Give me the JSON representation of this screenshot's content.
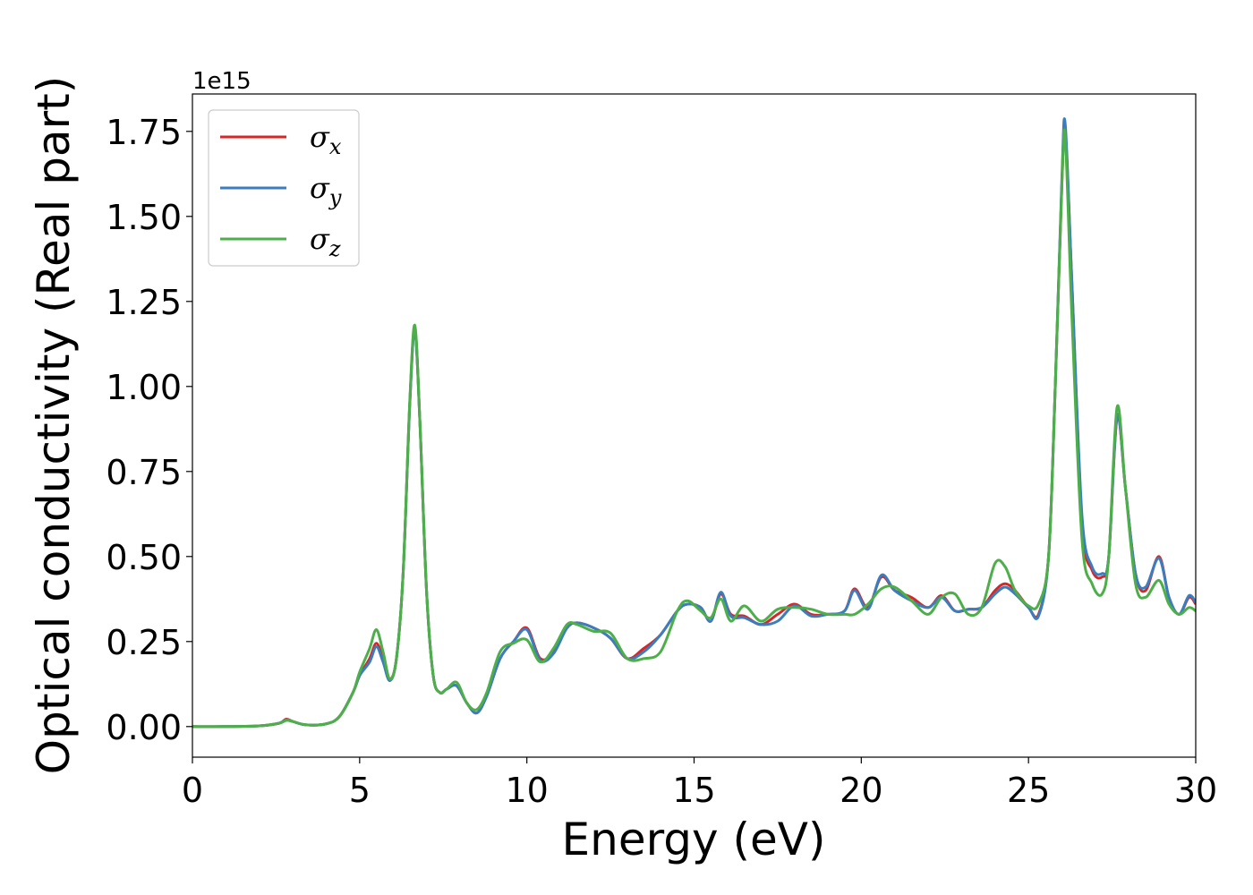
{
  "chart_data": {
    "type": "line",
    "title": "",
    "xlabel": "Energy (eV)",
    "ylabel": "Optical conductivity (Real part)",
    "y_offset_text": "1e15",
    "xlim": [
      0,
      30
    ],
    "ylim": [
      -0.09,
      1.86
    ],
    "xticks": [
      0,
      5,
      10,
      15,
      20,
      25,
      30
    ],
    "xtick_labels": [
      "0",
      "5",
      "10",
      "15",
      "20",
      "25",
      "30"
    ],
    "yticks": [
      0.0,
      0.25,
      0.5,
      0.75,
      1.0,
      1.25,
      1.5,
      1.75
    ],
    "ytick_labels": [
      "0.00",
      "0.25",
      "0.50",
      "0.75",
      "1.00",
      "1.25",
      "1.50",
      "1.75"
    ],
    "grid": false,
    "legend_position": "top-left",
    "series": [
      {
        "name": "σx",
        "legend_main": "σ",
        "legend_sub": "x",
        "color": "#d62728",
        "x": [
          0,
          1,
          2,
          2.6,
          2.8,
          3.0,
          3.4,
          4.0,
          4.4,
          4.8,
          5.0,
          5.3,
          5.5,
          5.7,
          5.9,
          6.1,
          6.3,
          6.5,
          6.65,
          6.8,
          7.0,
          7.2,
          7.4,
          7.6,
          7.9,
          8.2,
          8.5,
          8.8,
          9.2,
          9.6,
          10.0,
          10.4,
          10.8,
          11.2,
          11.5,
          12.0,
          12.5,
          13.0,
          13.5,
          14.0,
          14.5,
          14.8,
          15.2,
          15.5,
          15.8,
          16.1,
          16.5,
          17.0,
          17.5,
          18.0,
          18.5,
          19.0,
          19.5,
          19.8,
          20.2,
          20.6,
          21.0,
          21.5,
          22.0,
          22.4,
          22.8,
          23.2,
          23.6,
          24.0,
          24.3,
          24.6,
          25.0,
          25.3,
          25.6,
          25.8,
          26.0,
          26.1,
          26.3,
          26.6,
          26.9,
          27.2,
          27.4,
          27.65,
          27.9,
          28.2,
          28.5,
          28.9,
          29.2,
          29.5,
          29.8,
          30.0
        ],
        "y": [
          0,
          0,
          0.002,
          0.01,
          0.022,
          0.015,
          0.005,
          0.008,
          0.03,
          0.1,
          0.15,
          0.2,
          0.245,
          0.2,
          0.14,
          0.2,
          0.45,
          0.95,
          1.17,
          0.9,
          0.4,
          0.15,
          0.1,
          0.11,
          0.12,
          0.07,
          0.04,
          0.09,
          0.2,
          0.25,
          0.29,
          0.2,
          0.22,
          0.29,
          0.305,
          0.29,
          0.26,
          0.2,
          0.23,
          0.27,
          0.34,
          0.36,
          0.35,
          0.31,
          0.39,
          0.33,
          0.325,
          0.3,
          0.33,
          0.36,
          0.33,
          0.33,
          0.34,
          0.405,
          0.35,
          0.44,
          0.4,
          0.38,
          0.35,
          0.385,
          0.34,
          0.345,
          0.35,
          0.4,
          0.42,
          0.4,
          0.35,
          0.33,
          0.5,
          1.0,
          1.6,
          1.75,
          1.3,
          0.6,
          0.46,
          0.44,
          0.5,
          0.91,
          0.7,
          0.45,
          0.4,
          0.5,
          0.38,
          0.33,
          0.38,
          0.36
        ]
      },
      {
        "name": "σy",
        "legend_main": "σ",
        "legend_sub": "y",
        "color": "#3a7ebf",
        "x": [
          0,
          1,
          2,
          2.6,
          2.8,
          3.0,
          3.4,
          4.0,
          4.4,
          4.8,
          5.0,
          5.3,
          5.5,
          5.7,
          5.9,
          6.1,
          6.3,
          6.5,
          6.65,
          6.8,
          7.0,
          7.2,
          7.4,
          7.6,
          7.9,
          8.2,
          8.5,
          8.8,
          9.2,
          9.6,
          10.0,
          10.4,
          10.8,
          11.2,
          11.5,
          12.0,
          12.5,
          13.0,
          13.5,
          14.0,
          14.5,
          14.8,
          15.2,
          15.5,
          15.8,
          16.1,
          16.5,
          17.0,
          17.5,
          18.0,
          18.5,
          19.0,
          19.5,
          19.8,
          20.2,
          20.6,
          21.0,
          21.5,
          22.0,
          22.4,
          22.8,
          23.2,
          23.6,
          24.0,
          24.3,
          24.6,
          25.0,
          25.3,
          25.6,
          25.8,
          26.0,
          26.1,
          26.3,
          26.6,
          26.9,
          27.2,
          27.4,
          27.65,
          27.9,
          28.2,
          28.5,
          28.9,
          29.2,
          29.5,
          29.8,
          30.0
        ],
        "y": [
          0,
          0,
          0.002,
          0.01,
          0.02,
          0.015,
          0.005,
          0.008,
          0.03,
          0.1,
          0.15,
          0.19,
          0.235,
          0.19,
          0.135,
          0.2,
          0.45,
          0.95,
          1.165,
          0.9,
          0.4,
          0.15,
          0.1,
          0.11,
          0.12,
          0.07,
          0.04,
          0.09,
          0.2,
          0.25,
          0.285,
          0.195,
          0.215,
          0.29,
          0.305,
          0.29,
          0.26,
          0.2,
          0.22,
          0.27,
          0.34,
          0.36,
          0.35,
          0.31,
          0.395,
          0.325,
          0.32,
          0.3,
          0.31,
          0.355,
          0.325,
          0.33,
          0.34,
          0.4,
          0.345,
          0.445,
          0.4,
          0.37,
          0.35,
          0.38,
          0.34,
          0.345,
          0.35,
          0.39,
          0.41,
          0.39,
          0.35,
          0.325,
          0.5,
          1.0,
          1.62,
          1.77,
          1.3,
          0.62,
          0.47,
          0.45,
          0.5,
          0.915,
          0.7,
          0.45,
          0.41,
          0.495,
          0.38,
          0.33,
          0.385,
          0.365
        ]
      },
      {
        "name": "σz",
        "legend_main": "σ",
        "legend_sub": "z",
        "color": "#4daf4a",
        "x": [
          0,
          1,
          2,
          2.6,
          2.8,
          3.0,
          3.4,
          4.0,
          4.4,
          4.8,
          5.0,
          5.3,
          5.5,
          5.7,
          5.9,
          6.1,
          6.3,
          6.5,
          6.65,
          6.8,
          7.0,
          7.2,
          7.4,
          7.6,
          7.9,
          8.2,
          8.5,
          8.8,
          9.2,
          9.6,
          10.0,
          10.4,
          10.8,
          11.2,
          11.5,
          12.0,
          12.5,
          13.0,
          13.5,
          14.0,
          14.5,
          14.8,
          15.2,
          15.5,
          15.8,
          16.1,
          16.5,
          17.0,
          17.5,
          18.0,
          18.5,
          19.0,
          19.5,
          19.8,
          20.2,
          20.6,
          21.0,
          21.5,
          22.0,
          22.4,
          22.8,
          23.2,
          23.6,
          24.0,
          24.3,
          24.6,
          25.0,
          25.3,
          25.6,
          25.8,
          26.0,
          26.1,
          26.3,
          26.6,
          26.9,
          27.2,
          27.4,
          27.65,
          27.9,
          28.2,
          28.5,
          28.9,
          29.2,
          29.5,
          29.8,
          30.0
        ],
        "y": [
          0,
          0,
          0.002,
          0.01,
          0.018,
          0.015,
          0.005,
          0.008,
          0.03,
          0.1,
          0.16,
          0.23,
          0.285,
          0.22,
          0.14,
          0.2,
          0.45,
          0.96,
          1.18,
          0.9,
          0.4,
          0.15,
          0.1,
          0.11,
          0.13,
          0.07,
          0.05,
          0.1,
          0.22,
          0.245,
          0.255,
          0.19,
          0.23,
          0.3,
          0.3,
          0.28,
          0.275,
          0.2,
          0.2,
          0.22,
          0.34,
          0.37,
          0.34,
          0.32,
          0.375,
          0.31,
          0.355,
          0.31,
          0.345,
          0.35,
          0.345,
          0.33,
          0.33,
          0.33,
          0.36,
          0.405,
          0.41,
          0.37,
          0.33,
          0.38,
          0.39,
          0.33,
          0.35,
          0.48,
          0.47,
          0.4,
          0.355,
          0.36,
          0.5,
          1.0,
          1.6,
          1.73,
          1.2,
          0.55,
          0.42,
          0.39,
          0.5,
          0.94,
          0.7,
          0.42,
          0.38,
          0.43,
          0.36,
          0.33,
          0.35,
          0.34
        ]
      }
    ]
  }
}
